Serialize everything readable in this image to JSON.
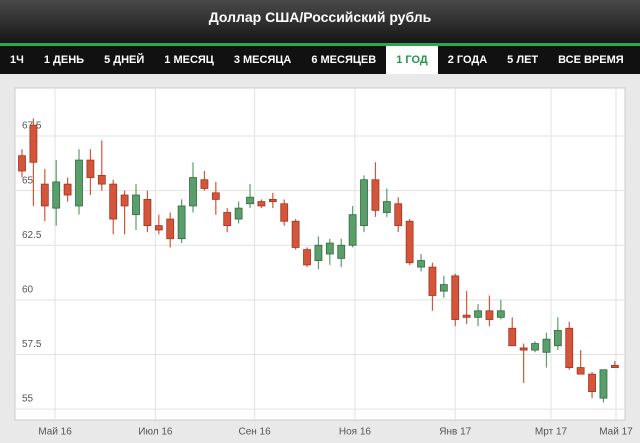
{
  "header": {
    "title": "Доллар США/Российский рубль"
  },
  "tabs": [
    {
      "label": "1Ч",
      "active": false
    },
    {
      "label": "1 ДЕНЬ",
      "active": false
    },
    {
      "label": "5 ДНЕЙ",
      "active": false
    },
    {
      "label": "1 МЕСЯЦ",
      "active": false
    },
    {
      "label": "3 МЕСЯЦА",
      "active": false
    },
    {
      "label": "6 МЕСЯЦЕВ",
      "active": false
    },
    {
      "label": "1 ГОД",
      "active": true
    },
    {
      "label": "2 ГОДА",
      "active": false
    },
    {
      "label": "5 ЛЕТ",
      "active": false
    },
    {
      "label": "ВСЕ ВРЕМЯ",
      "active": false
    }
  ],
  "chart_data": {
    "type": "candlestick",
    "x": [
      0,
      1,
      2,
      3,
      4,
      5,
      6,
      7,
      8,
      9,
      10,
      11,
      12,
      13,
      14,
      15,
      16,
      17,
      18,
      19,
      20,
      21,
      22,
      23,
      24,
      25,
      26,
      27,
      28,
      29,
      30,
      31,
      32,
      33,
      34,
      35,
      36,
      37,
      38,
      39,
      40,
      41,
      42,
      43,
      44,
      45,
      46,
      47,
      48,
      49,
      50,
      51,
      52
    ],
    "open": [
      66.6,
      68.0,
      65.3,
      64.2,
      65.3,
      64.3,
      66.4,
      65.7,
      65.3,
      64.8,
      63.9,
      64.6,
      63.4,
      63.7,
      62.8,
      64.3,
      65.5,
      64.9,
      64.0,
      63.7,
      64.4,
      64.5,
      64.6,
      64.4,
      63.6,
      62.3,
      61.8,
      62.1,
      61.9,
      62.5,
      63.4,
      65.5,
      64.0,
      64.4,
      63.6,
      61.5,
      61.5,
      60.4,
      61.1,
      59.3,
      59.2,
      59.5,
      59.2,
      58.7,
      57.8,
      57.7,
      57.6,
      57.9,
      58.7,
      56.9,
      56.6,
      55.5,
      57.0
    ],
    "high": [
      66.9,
      68.3,
      66.0,
      66.4,
      65.6,
      66.9,
      66.9,
      67.3,
      65.5,
      65.0,
      65.3,
      65.0,
      63.9,
      64.0,
      64.6,
      66.3,
      65.9,
      65.4,
      64.2,
      64.5,
      65.3,
      64.6,
      64.9,
      64.6,
      63.7,
      62.4,
      62.9,
      62.8,
      62.8,
      64.3,
      65.7,
      66.3,
      65.1,
      64.7,
      63.7,
      62.1,
      61.7,
      61.1,
      61.2,
      60.4,
      59.8,
      60.2,
      60.0,
      59.2,
      58.0,
      58.1,
      58.5,
      59.2,
      59.0,
      57.7,
      56.7,
      56.8,
      57.2
    ],
    "low": [
      65.6,
      64.3,
      63.6,
      63.4,
      64.5,
      63.9,
      64.8,
      65.0,
      63.0,
      63.0,
      63.2,
      63.1,
      63.0,
      62.4,
      62.6,
      64.0,
      65.0,
      63.9,
      63.1,
      63.5,
      64.2,
      64.2,
      64.2,
      63.4,
      62.3,
      61.5,
      61.4,
      61.6,
      61.5,
      62.4,
      63.1,
      63.8,
      63.8,
      63.1,
      61.6,
      61.3,
      59.5,
      60.1,
      58.8,
      58.9,
      58.8,
      58.8,
      59.1,
      57.9,
      56.2,
      57.6,
      56.9,
      57.7,
      56.8,
      56.6,
      55.5,
      55.3,
      56.9
    ],
    "close": [
      65.9,
      66.3,
      64.3,
      65.4,
      64.8,
      66.4,
      65.6,
      65.3,
      63.7,
      64.3,
      64.8,
      63.4,
      63.2,
      62.8,
      64.3,
      65.6,
      65.1,
      64.6,
      63.4,
      64.2,
      64.7,
      64.3,
      64.5,
      63.6,
      62.4,
      61.6,
      62.5,
      62.6,
      62.5,
      63.9,
      65.5,
      64.1,
      64.5,
      63.4,
      61.7,
      61.8,
      60.2,
      60.7,
      59.1,
      59.2,
      59.5,
      59.1,
      59.5,
      57.9,
      57.7,
      58.0,
      58.2,
      58.6,
      56.9,
      56.6,
      55.8,
      56.8,
      56.9
    ],
    "up_color": "#5a9e6b",
    "down_color": "#d5553a",
    "ylim": [
      54.5,
      69.7
    ],
    "yticks": [
      55,
      57.5,
      60,
      62.5,
      65,
      67.5
    ],
    "xlim": [
      -0.614,
      52.89
    ],
    "xticks": [
      {
        "value": 2.9,
        "label": "Май 16"
      },
      {
        "value": 11.7,
        "label": "Июл 16"
      },
      {
        "value": 20.4,
        "label": "Сен 16"
      },
      {
        "value": 29.2,
        "label": "Ноя 16"
      },
      {
        "value": 38,
        "label": "Янв 17"
      },
      {
        "value": 46.4,
        "label": "Мрт 17"
      },
      {
        "value": 52.1,
        "label": "Май 17"
      }
    ],
    "grid": true
  }
}
